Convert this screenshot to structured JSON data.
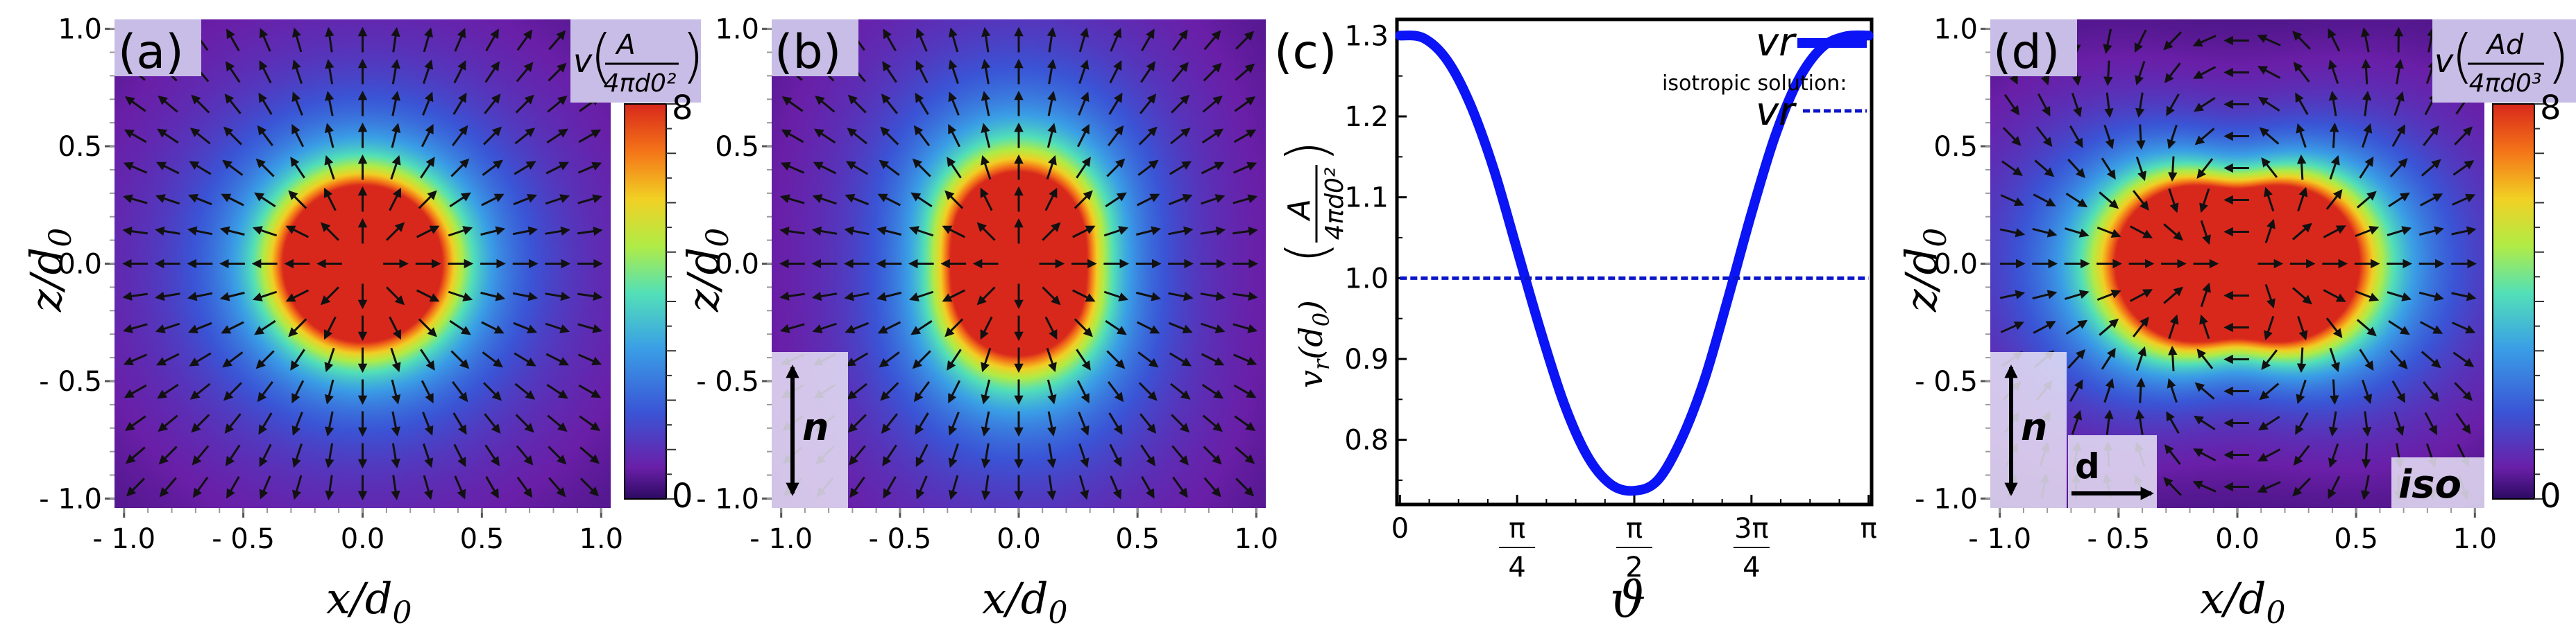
{
  "colors": {
    "background": "#ffffff",
    "curve": "#0a14f5",
    "isotropic": "#0a14c8",
    "label_box": "#c8bde6",
    "arrow": "#111111"
  },
  "panels": {
    "a": {
      "label": "(a)",
      "xlabel": "x/d0",
      "ylabel": "z/d0",
      "colorbar": {
        "title_prefix": "v",
        "numerator": "A",
        "denominator": "4πd0²",
        "max": "8",
        "min": "0",
        "vmin": 0,
        "vmax": 8
      }
    },
    "b": {
      "label": "(b)",
      "xlabel": "x/d0",
      "ylabel": "z/d0",
      "n_label": "n"
    },
    "c": {
      "label": "(c)"
    },
    "d": {
      "label": "(d)",
      "xlabel": "x/d0",
      "ylabel": "z/d0",
      "n_label": "n",
      "d_label": "d",
      "iso_label": "iso",
      "colorbar": {
        "title_prefix": "v",
        "numerator": "Ad",
        "denominator": "4πd0³",
        "max": "8",
        "min": "0",
        "vmin": 0,
        "vmax": 8
      }
    }
  },
  "axis_labels": {
    "x_main": "x/d",
    "x_sub": "0",
    "z_main": "z/d",
    "z_sub": "0"
  },
  "chart_data": [
    {
      "type": "heatmap",
      "panel": "a",
      "title": "(a)",
      "xlabel": "x/d0",
      "ylabel": "z/d0",
      "xlim": [
        -1.0,
        1.0
      ],
      "ylim": [
        -1.0,
        1.0
      ],
      "x_ticks": [
        "- 1.0",
        "- 0.5",
        "0.0",
        "0.5",
        "1.0"
      ],
      "y_ticks": [
        "1.0",
        "0.5",
        "0.0",
        "- 0.5",
        "- 1.0"
      ],
      "field": "radial source field, saturated core radius ~0.35",
      "colorbar_range": [
        0,
        8
      ]
    },
    {
      "type": "heatmap",
      "panel": "b",
      "title": "(b)",
      "xlabel": "x/d0",
      "ylabel": "z/d0",
      "xlim": [
        -1.0,
        1.0
      ],
      "ylim": [
        -1.0,
        1.0
      ],
      "x_ticks": [
        "- 1.0",
        "- 0.5",
        "0.0",
        "0.5",
        "1.0"
      ],
      "y_ticks": [
        "1.0",
        "0.5",
        "0.0",
        "- 0.5",
        "- 1.0"
      ],
      "field": "anisotropic radial field elongated along z",
      "colorbar_range": [
        0,
        8
      ]
    },
    {
      "type": "line",
      "panel": "c",
      "title": "(c)",
      "xlabel": "ϑ",
      "ylabel": "vr(d0)",
      "ylabel_unit_num": "A",
      "ylabel_unit_den": "4πd0²",
      "x_ticks": [
        "0",
        "π/4",
        "π/2",
        "3π/4",
        "π"
      ],
      "y_ticks": [
        "1.3",
        "1.2",
        "1.1",
        "1.0",
        "0.9",
        "0.8"
      ],
      "xlim": [
        0,
        3.1416
      ],
      "ylim": [
        0.72,
        1.32
      ],
      "legend": {
        "main": "vr",
        "sub_title": "isotropic solution:",
        "iso": "vr"
      },
      "series": [
        {
          "name": "vr",
          "style": "solid",
          "x": [
            0,
            0.1571,
            0.3142,
            0.4712,
            0.6283,
            0.7854,
            0.9425,
            1.0996,
            1.2566,
            1.4137,
            1.5708,
            1.7279,
            1.885,
            2.042,
            2.1991,
            2.3562,
            2.5133,
            2.6704,
            2.8274,
            2.9845,
            3.1416
          ],
          "y": [
            1.3,
            1.297,
            1.27,
            1.215,
            1.135,
            1.035,
            0.935,
            0.845,
            0.78,
            0.745,
            0.737,
            0.75,
            0.8,
            0.875,
            0.975,
            1.08,
            1.175,
            1.245,
            1.285,
            1.299,
            1.3
          ]
        },
        {
          "name": "isotropic vr",
          "style": "dashed",
          "x": [
            0,
            3.1416
          ],
          "y": [
            1.0,
            1.0
          ]
        }
      ]
    },
    {
      "type": "heatmap",
      "panel": "d",
      "title": "(d)",
      "xlabel": "x/d0",
      "ylabel": "z/d0",
      "xlim": [
        -1.0,
        1.0
      ],
      "ylim": [
        -1.0,
        1.0
      ],
      "x_ticks": [
        "- 1.0",
        "- 0.5",
        "0.0",
        "0.5",
        "1.0"
      ],
      "y_ticks": [
        "1.0",
        "0.5",
        "0.0",
        "- 0.5",
        "- 1.0"
      ],
      "field": "dipolar field along x, saturated core elongated along x",
      "colorbar_range": [
        0,
        8
      ]
    }
  ]
}
